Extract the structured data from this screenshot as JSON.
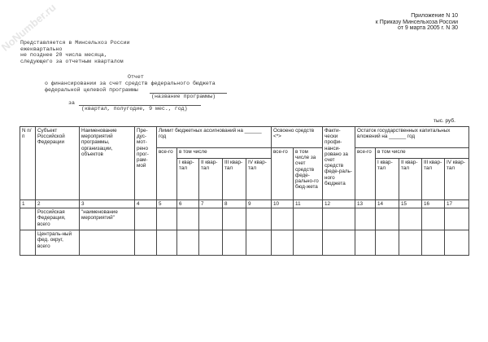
{
  "watermark": "NoNumber.ru",
  "appendix": [
    "Приложение N 10",
    "к Приказу Минсельхоза России",
    "от 9 марта 2005 г. N 30"
  ],
  "submission": [
    "Представляется в Минсельхоз России",
    "ежеквартально",
    "не позднее 20 числа месяца,",
    "следующего за отчетным кварталом"
  ],
  "report": {
    "title": "Отчет",
    "line1": "о финансировании за счет средств федерального бюджета",
    "line2": "федеральной целевой программы",
    "program_hint": "(название программы)",
    "za": "за",
    "period_hint": "(квартал, полугодие, 9 мес., год)"
  },
  "unit": "тыс. руб.",
  "table": {
    "h_num": "N п/п",
    "h_subject": "Субъект Российской Федерации",
    "h_name": "Наименование мероприятий программы, организации, объектов",
    "h_planned": "Пре-дус-мот-рено прог-рам-мой",
    "h_limit": "Лимит бюджетных ассигнований на ______ год",
    "h_mastered": "Освоено средств <*>",
    "h_actual": "Факти-чески профи-нанси-ровано за счет средств феде-раль-ного бюджета",
    "h_remainder": "Остаток государственных капитальных вложений на ______ год",
    "total": "все-го",
    "incl": "в том числе",
    "incl_fed": "в том числе за счет средств феде-рально-го бюд-жета",
    "q1": "I квар-тал",
    "q2": "II квар-тал",
    "q3": "III квар-тал",
    "q4": "IV квар-тал",
    "numbers": [
      "1",
      "2",
      "3",
      "4",
      "5",
      "6",
      "7",
      "8",
      "9",
      "10",
      "11",
      "12",
      "13",
      "14",
      "15",
      "16",
      "17"
    ],
    "rows": [
      {
        "subject": "Российская Федерация, всего",
        "name": "\"наименование мероприятий\""
      },
      {
        "subject": "Централь-ный фед. округ, всего",
        "name": ""
      }
    ]
  }
}
